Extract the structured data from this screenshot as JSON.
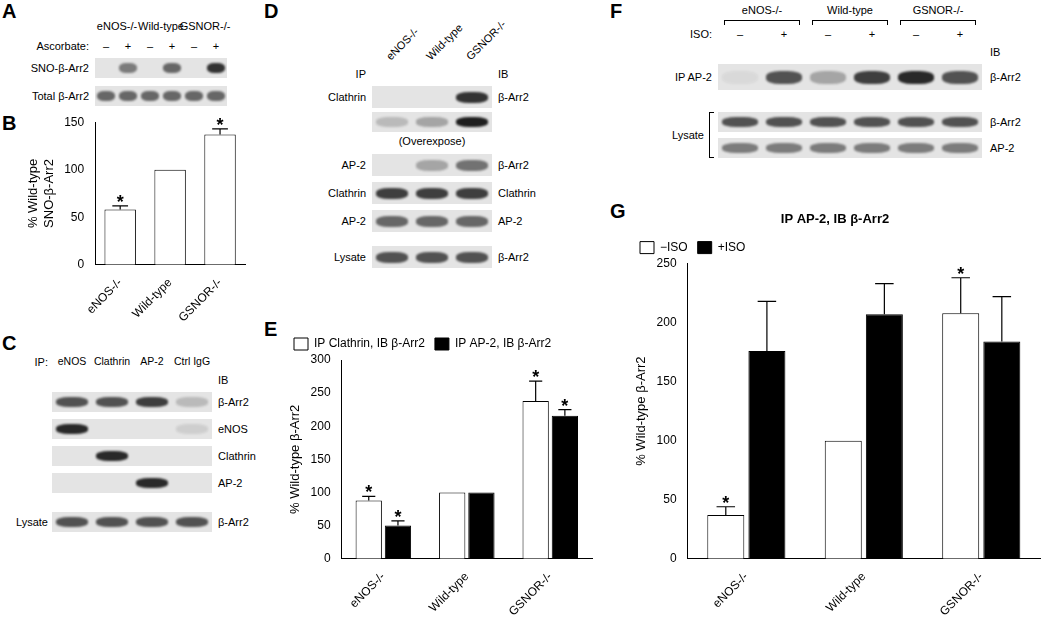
{
  "chart_data": [
    {
      "panel": "B",
      "type": "bar",
      "categories": [
        "eNOS-/-",
        "Wild-type",
        "GSNOR-/-"
      ],
      "y_label": [
        "% Wild-type",
        "SNO-β-Arr2"
      ],
      "series": [
        {
          "color": "#ffffff",
          "values": [
            58,
            100,
            137
          ],
          "errors": [
            4,
            null,
            6
          ]
        }
      ],
      "ylim": [
        0,
        150
      ],
      "yticks": [
        0,
        50,
        100,
        150
      ],
      "grid": false,
      "annotations": [
        {
          "text": "*",
          "category": "eNOS-/-"
        },
        {
          "text": "*",
          "category": "GSNOR-/-"
        }
      ]
    },
    {
      "panel": "E",
      "type": "bar",
      "categories": [
        "eNOS-/-",
        "Wild-type",
        "GSNOR-/-"
      ],
      "y_label": "% Wild-type β-Arr2",
      "series": [
        {
          "name": "IP Clathrin, IB β-Arr2",
          "color": "#ffffff",
          "values": [
            88,
            100,
            238
          ],
          "errors": [
            6,
            null,
            30
          ]
        },
        {
          "name": "IP AP-2, IB β-Arr2",
          "color": "#000000",
          "values": [
            50,
            100,
            216
          ],
          "errors": [
            7,
            null,
            9
          ]
        }
      ],
      "ylim": [
        0,
        300
      ],
      "yticks": [
        0,
        50,
        100,
        150,
        200,
        250,
        300
      ],
      "grid": false,
      "legend": "top left",
      "annotations": [
        {
          "text": "*",
          "category": "eNOS-/-",
          "series": "IP Clathrin, IB β-Arr2"
        },
        {
          "text": "*",
          "category": "eNOS-/-",
          "series": "IP AP-2, IB β-Arr2"
        },
        {
          "text": "*",
          "category": "GSNOR-/-",
          "series": "IP Clathrin, IB β-Arr2"
        },
        {
          "text": "*",
          "category": "GSNOR-/-",
          "series": "IP AP-2, IB β-Arr2"
        }
      ]
    },
    {
      "panel": "G",
      "type": "bar",
      "title": "IP AP-2, IB β-Arr2",
      "categories": [
        "eNOS-/-",
        "Wild-type",
        "GSNOR-/-"
      ],
      "y_label": "% Wild-type β-Arr2",
      "series": [
        {
          "name": "−ISO",
          "color": "#ffffff",
          "values": [
            37,
            100,
            208
          ],
          "errors": [
            7,
            null,
            30
          ]
        },
        {
          "name": "+ISO",
          "color": "#000000",
          "values": [
            176,
            207,
            184
          ],
          "errors": [
            42,
            26,
            38
          ]
        }
      ],
      "ylim": [
        0,
        250
      ],
      "yticks": [
        0,
        50,
        100,
        150,
        200,
        250
      ],
      "grid": false,
      "legend": "top left",
      "annotations": [
        {
          "text": "*",
          "category": "eNOS-/-",
          "series": "−ISO"
        },
        {
          "text": "*",
          "category": "GSNOR-/-",
          "series": "−ISO"
        }
      ]
    }
  ],
  "blots": [
    {
      "panel": "A",
      "lanes": [
        "eNOS-/-",
        "Wild-type",
        "GSNOR-/-"
      ],
      "treatment": {
        "label": "Ascorbate:",
        "signs": [
          "–",
          "+",
          "–",
          "+",
          "–",
          "+"
        ]
      },
      "rows": [
        {
          "label": "SNO-β-Arr2"
        },
        {
          "label": "Total β-Arr2"
        }
      ]
    },
    {
      "panel": "C",
      "ip_label": "IP:",
      "lanes": [
        "eNOS",
        "Clathrin",
        "AP-2",
        "Ctrl IgG"
      ],
      "ib_label": "IB",
      "rows": [
        {
          "label": "β-Arr2"
        },
        {
          "label": "eNOS"
        },
        {
          "label": "Clathrin"
        },
        {
          "label": "AP-2"
        },
        {
          "label": "β-Arr2",
          "group": "Lysate"
        }
      ]
    },
    {
      "panel": "D",
      "lanes": [
        "eNOS-/-",
        "Wild-type",
        "GSNOR-/-"
      ],
      "ip_header": "IP",
      "ib_header": "IB",
      "rows": [
        {
          "ip": "Clathrin",
          "ib": "β-Arr2",
          "overexposed": "(Overexpose)"
        },
        {
          "ip": "AP-2",
          "ib": "β-Arr2"
        },
        {
          "ip": "Clathrin",
          "ib": "Clathrin"
        },
        {
          "ip": "AP-2",
          "ib": "AP-2"
        },
        {
          "ip": "Lysate",
          "ib": "β-Arr2"
        }
      ]
    },
    {
      "panel": "F",
      "lanes": [
        "eNOS-/-",
        "Wild-type",
        "GSNOR-/-"
      ],
      "treatment": {
        "label": "ISO:",
        "signs": [
          "–",
          "+",
          "–",
          "+",
          "–",
          "+"
        ]
      },
      "ib_header": "IB",
      "rows": [
        {
          "ip": "IP AP-2",
          "ib": "β-Arr2"
        },
        {
          "group": "Lysate",
          "ib": "β-Arr2"
        },
        {
          "group": "Lysate",
          "ib": "AP-2"
        }
      ]
    }
  ]
}
